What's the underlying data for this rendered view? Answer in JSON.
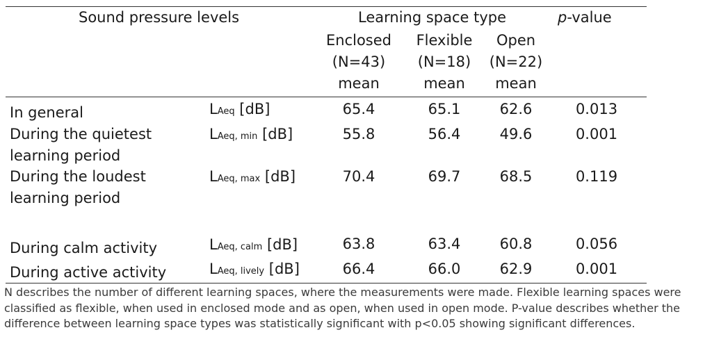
{
  "header": {
    "sound_levels": "Sound pressure levels",
    "space_type": "Learning space type",
    "p_italic": "p",
    "p_rest": "-value",
    "columns": [
      {
        "name": "Enclosed",
        "n": "(N=43)",
        "stat": "mean"
      },
      {
        "name": "Flexible",
        "n": "(N=18)",
        "stat": "mean"
      },
      {
        "name": "Open",
        "n": "(N=22)",
        "stat": "mean"
      }
    ]
  },
  "rows": [
    {
      "label1": "In general",
      "label2": "",
      "sym": "L",
      "sub": "Aeq",
      "unit": " [dB]",
      "enclosed": "65.4",
      "flexible": "65.1",
      "open": "62.6",
      "p": "0.013"
    },
    {
      "label1": "During the quietest",
      "label2": "learning period",
      "sym": "L",
      "sub": "Aeq, min",
      "unit": " [dB]",
      "enclosed": "55.8",
      "flexible": "56.4",
      "open": "49.6",
      "p": "0.001"
    },
    {
      "label1": "During the loudest",
      "label2": "learning period",
      "sym": "L",
      "sub": "Aeq, max",
      "unit": " [dB]",
      "enclosed": "70.4",
      "flexible": "69.7",
      "open": "68.5",
      "p": "0.119"
    },
    {
      "label1": "During calm activity",
      "label2": "",
      "sym": "L",
      "sub": "Aeq, calm",
      "unit": " [dB]",
      "enclosed": "63.8",
      "flexible": "63.4",
      "open": "60.8",
      "p": "0.056"
    },
    {
      "label1": "During active activity",
      "label2": "",
      "sym": "L",
      "sub": "Aeq, lively",
      "unit": " [dB]",
      "enclosed": "66.4",
      "flexible": "66.0",
      "open": "62.9",
      "p": "0.001"
    }
  ],
  "note": {
    "line1": "N describes the number of different learning spaces, where the measurements were made. Flexible learning spaces were",
    "line2": "classified as flexible, when used in enclosed mode and as open, when used in open mode. P-value describes whether the",
    "line3": "difference between learning space types was statistically significant with p<0.05 showing significant differences."
  }
}
